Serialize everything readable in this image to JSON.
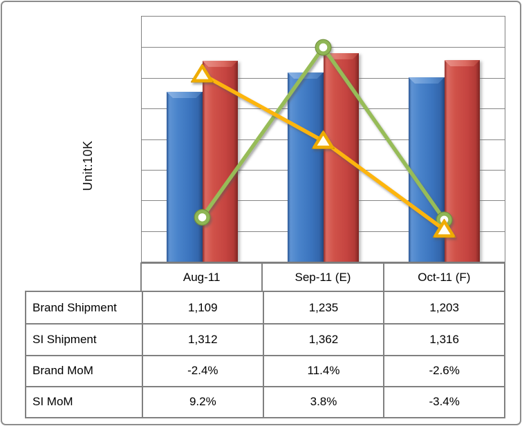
{
  "chart_data": {
    "type": "combo",
    "categories": [
      "Aug-11",
      "Sep-11 (E)",
      "Oct-11 (F)"
    ],
    "bar_series": [
      {
        "name": "Brand Shipment",
        "values": [
          1109,
          1235,
          1203
        ],
        "color": "#3E78C4"
      },
      {
        "name": "SI Shipment",
        "values": [
          1312,
          1362,
          1316
        ],
        "color": "#C94540"
      }
    ],
    "line_series": [
      {
        "name": "Brand MoM",
        "values_pct": [
          -2.4,
          11.4,
          -2.6
        ],
        "color": "#97BC58",
        "marker": "circle",
        "marker_fill": "#FFFFFF",
        "marker_stroke": "#8FB654",
        "outline": "#71913C"
      },
      {
        "name": "SI MoM",
        "values_pct": [
          9.2,
          3.8,
          -3.4
        ],
        "color": "#FDB50C",
        "marker": "triangle",
        "marker_fill": "#FFFEF4",
        "marker_stroke": "#EFAC06",
        "outline": "#C79004"
      }
    ],
    "ylabel": "Unit:10K",
    "ylim": [
      0,
      1600
    ],
    "gridline_step": 200,
    "ylim2_pct": [
      -6.0,
      13.9
    ],
    "grid": true,
    "legend": false,
    "axis_tick_labels_visible": false
  },
  "table": {
    "headers": [
      "Aug-11",
      "Sep-11 (E)",
      "Oct-11 (F)"
    ],
    "rows": [
      {
        "label": "Brand Shipment",
        "values": [
          "1,109",
          "1,235",
          "1,203"
        ]
      },
      {
        "label": "SI Shipment",
        "values": [
          "1,312",
          "1,362",
          "1,316"
        ]
      },
      {
        "label": "Brand MoM",
        "values": [
          "-2.4%",
          "11.4%",
          "-2.6%"
        ]
      },
      {
        "label": "SI MoM",
        "values": [
          "9.2%",
          "3.8%",
          "-3.4%"
        ]
      }
    ]
  },
  "colors": {
    "frame_border": "#8C8C8C",
    "grid_border": "#808080",
    "bar_blue": "#3E78C4",
    "bar_red": "#C94540",
    "line_green": "#97BC58",
    "line_yellow": "#FDB50C",
    "text": "#000000"
  }
}
